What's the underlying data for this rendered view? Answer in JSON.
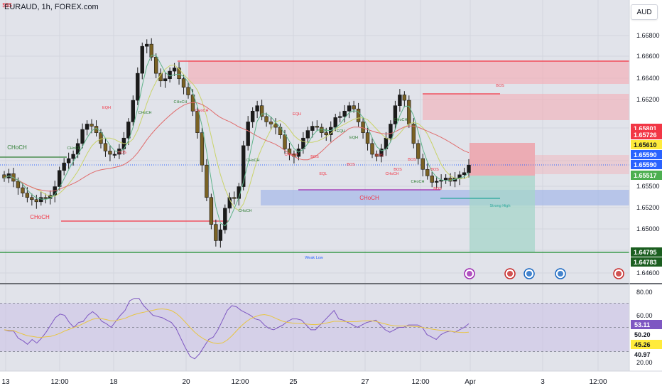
{
  "header": {
    "symbol": "EURAUD, 1h, FOREX.com",
    "currency": "AUD"
  },
  "chart_data": [
    {
      "type": "candlestick",
      "title": "EURAUD, 1h, FOREX.com",
      "price_axis_ticks": [
        "1.66800",
        "1.66600",
        "1.66400",
        "1.66200",
        "1.65500",
        "1.65200",
        "1.65000",
        "1.64600"
      ],
      "price_tags": [
        {
          "label": "1.65801",
          "color": "#f23645"
        },
        {
          "label": "1.65726",
          "color": "#f23645"
        },
        {
          "label": "1.65610",
          "color": "#ffeb3b"
        },
        {
          "label": "1.65590",
          "color": "#2962ff"
        },
        {
          "label": "1.65590",
          "color": "#2962ff"
        },
        {
          "label": "1.65517",
          "color": "#4caf50"
        },
        {
          "label": "1.64795",
          "color": "#1b5e20"
        },
        {
          "label": "1.64783",
          "color": "#1b5e20"
        }
      ],
      "time_axis_labels": [
        "13",
        "12:00",
        "18",
        "20",
        "12:00",
        "25",
        "27",
        "12:00",
        "Apr",
        "3",
        "12:00"
      ],
      "annotations": [
        "CHoCH",
        "CHoCH",
        "CHoCH",
        "EQH",
        "CHoCH",
        "BOS",
        "CHoCH",
        "CHoCH",
        "CHoCH",
        "EQH",
        "CHoCH",
        "BOS",
        "CHoCH",
        "EQL",
        "BOS",
        "EQH",
        "EQH",
        "BOS",
        "BOS",
        "CHoCH",
        "BOS",
        "BOS",
        "CHoCH",
        "BOS",
        "CHoCH",
        "BOS",
        "CHoCH",
        "BOS",
        "Strong High",
        "Weak Low",
        "$$$"
      ],
      "series": [
        {
          "name": "EURAUD",
          "y_range": [
            1.6455,
            1.6688
          ],
          "close": [
            1.6548,
            1.6552,
            1.6545,
            1.6539,
            1.6534,
            1.653,
            1.6528,
            1.6526,
            1.653,
            1.6529,
            1.6532,
            1.654,
            1.6555,
            1.6562,
            1.6566,
            1.657,
            1.658,
            1.6593,
            1.6598,
            1.6596,
            1.659,
            1.658,
            1.6573,
            1.657,
            1.657,
            1.6575,
            1.6585,
            1.66,
            1.662,
            1.6645,
            1.667,
            1.6672,
            1.666,
            1.6645,
            1.6638,
            1.664,
            1.6647,
            1.665,
            1.664,
            1.6632,
            1.6625,
            1.661,
            1.659,
            1.656,
            1.653,
            1.6505,
            1.649,
            1.65,
            1.652,
            1.653,
            1.6529,
            1.654,
            1.6578,
            1.66,
            1.661,
            1.6615,
            1.6605,
            1.66,
            1.6598,
            1.6595,
            1.6588,
            1.6575,
            1.657,
            1.6568,
            1.6575,
            1.6585,
            1.6592,
            1.6596,
            1.6595,
            1.659,
            1.6588,
            1.6595,
            1.6604,
            1.6605,
            1.661,
            1.6615,
            1.6612,
            1.66,
            1.659,
            1.658,
            1.657,
            1.6568,
            1.6575,
            1.6585,
            1.6598,
            1.6615,
            1.6625,
            1.662,
            1.6598,
            1.658,
            1.6566,
            1.6556,
            1.655,
            1.6544,
            1.6545,
            1.6546,
            1.6548,
            1.6545,
            1.6548,
            1.6551,
            1.6553,
            1.656
          ]
        },
        {
          "name": "RSI",
          "y_range": [
            20,
            80
          ],
          "ticks": [
            "80.00",
            "60.00",
            "20.00"
          ],
          "tags": [
            {
              "label": "53.11",
              "color": "#7e57c2"
            },
            {
              "label": "50.20",
              "color": "#ffffff"
            },
            {
              "label": "45.26",
              "color": "#ffeb3b"
            },
            {
              "label": "40.97",
              "color": "#ffffff"
            }
          ],
          "values": [
            48,
            47,
            47,
            41,
            39,
            36,
            40,
            37,
            41,
            46,
            52,
            58,
            61,
            60,
            54,
            50,
            54,
            55,
            60,
            63,
            60,
            55,
            53,
            50,
            55,
            60,
            64,
            72,
            74,
            74,
            68,
            64,
            60,
            59,
            58,
            56,
            54,
            49,
            41,
            33,
            26,
            24,
            28,
            34,
            40,
            42,
            48,
            56,
            64,
            68,
            67,
            64,
            62,
            60,
            57,
            56,
            52,
            49,
            48,
            50,
            52,
            55,
            57,
            57,
            56,
            52,
            48,
            48,
            52,
            56,
            60,
            64,
            57,
            56,
            54,
            52,
            50,
            52,
            54,
            55,
            56,
            52,
            48,
            46,
            48,
            50,
            50,
            52,
            52,
            52,
            50,
            44,
            42,
            40,
            44,
            46,
            47,
            46,
            48,
            50,
            53
          ]
        }
      ]
    }
  ]
}
